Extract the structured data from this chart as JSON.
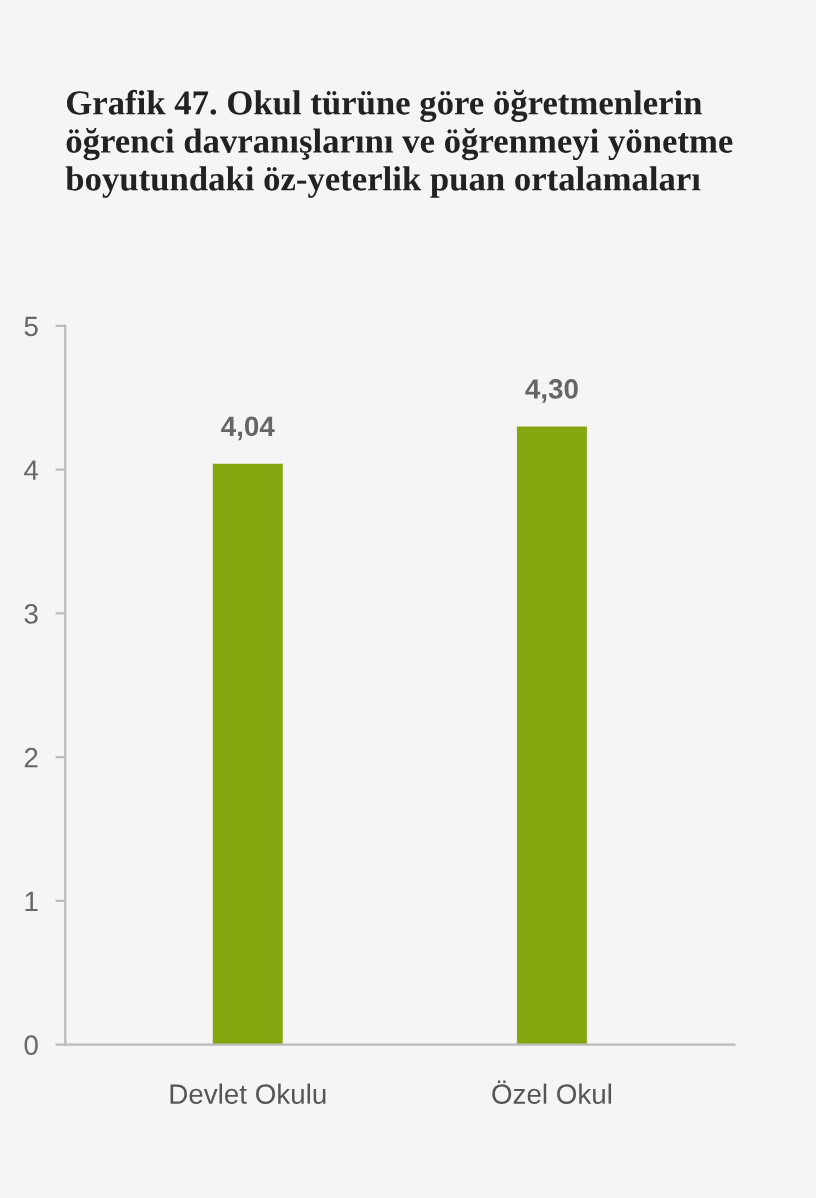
{
  "chart_data": {
    "type": "bar",
    "title": "Grafik 47. Okul türüne göre öğretmenlerin öğrenci davranışlarını ve öğrenmeyi yönetme boyutundaki öz-yeterlik puan ortalamaları",
    "categories": [
      "Devlet Okulu",
      "Özel Okul"
    ],
    "values": [
      4.04,
      4.3
    ],
    "value_labels": [
      "4,04",
      "4,30"
    ],
    "color": "#86a60f",
    "ylim": [
      0,
      5
    ],
    "yticks": [
      0,
      1,
      2,
      3,
      4,
      5
    ],
    "grid": false
  }
}
